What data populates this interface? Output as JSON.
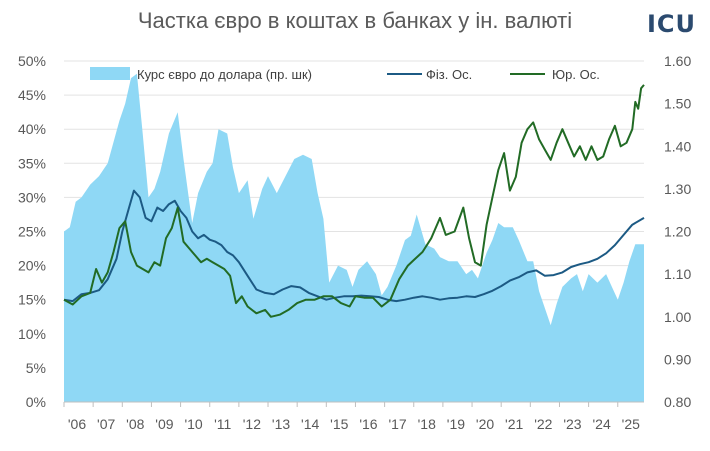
{
  "header": {
    "title": "Частка євро в коштах в банках у ін. валюті",
    "brand": "ICU"
  },
  "colors": {
    "area": "#8fd8f5",
    "individuals": "#1c5a84",
    "legal": "#226b25",
    "axis_text": "#595959"
  },
  "chart_data": {
    "type": "line",
    "title": "Частка євро в коштах в банках у ін. валюті",
    "x_ticks": [
      "'06",
      "'07",
      "'08",
      "'09",
      "'10",
      "'11",
      "'12",
      "'13",
      "'14",
      "'15",
      "'16",
      "'17",
      "'18",
      "'19",
      "'20",
      "'21",
      "'22",
      "'23",
      "'24",
      "'25"
    ],
    "x_range": [
      2006,
      2025.9
    ],
    "y_left": {
      "ticks": [
        "0%",
        "5%",
        "10%",
        "15%",
        "20%",
        "25%",
        "30%",
        "35%",
        "40%",
        "45%",
        "50%"
      ],
      "range": [
        0,
        50
      ]
    },
    "y_right": {
      "ticks": [
        "0.80",
        "0.90",
        "1.00",
        "1.10",
        "1.20",
        "1.30",
        "1.40",
        "1.50",
        "1.60"
      ],
      "range": [
        0.8,
        1.6
      ]
    },
    "grid": true,
    "legend": "top",
    "series": [
      {
        "name": "Курс євро до долара (пр. шк)",
        "type": "area",
        "axis": "right",
        "points": [
          [
            2006.0,
            1.2
          ],
          [
            2006.2,
            1.21
          ],
          [
            2006.4,
            1.27
          ],
          [
            2006.6,
            1.28
          ],
          [
            2006.9,
            1.31
          ],
          [
            2007.2,
            1.33
          ],
          [
            2007.5,
            1.36
          ],
          [
            2007.9,
            1.46
          ],
          [
            2008.1,
            1.5
          ],
          [
            2008.3,
            1.56
          ],
          [
            2008.5,
            1.57
          ],
          [
            2008.7,
            1.43
          ],
          [
            2008.9,
            1.28
          ],
          [
            2009.1,
            1.3
          ],
          [
            2009.3,
            1.34
          ],
          [
            2009.6,
            1.43
          ],
          [
            2009.9,
            1.48
          ],
          [
            2010.1,
            1.37
          ],
          [
            2010.4,
            1.22
          ],
          [
            2010.6,
            1.29
          ],
          [
            2010.9,
            1.34
          ],
          [
            2011.1,
            1.36
          ],
          [
            2011.3,
            1.44
          ],
          [
            2011.6,
            1.43
          ],
          [
            2011.8,
            1.35
          ],
          [
            2012.0,
            1.29
          ],
          [
            2012.3,
            1.32
          ],
          [
            2012.5,
            1.23
          ],
          [
            2012.8,
            1.3
          ],
          [
            2013.0,
            1.33
          ],
          [
            2013.3,
            1.29
          ],
          [
            2013.6,
            1.33
          ],
          [
            2013.9,
            1.37
          ],
          [
            2014.2,
            1.38
          ],
          [
            2014.5,
            1.37
          ],
          [
            2014.7,
            1.29
          ],
          [
            2014.9,
            1.23
          ],
          [
            2015.1,
            1.08
          ],
          [
            2015.4,
            1.12
          ],
          [
            2015.7,
            1.11
          ],
          [
            2015.9,
            1.07
          ],
          [
            2016.1,
            1.11
          ],
          [
            2016.4,
            1.13
          ],
          [
            2016.7,
            1.1
          ],
          [
            2016.9,
            1.05
          ],
          [
            2017.1,
            1.07
          ],
          [
            2017.4,
            1.12
          ],
          [
            2017.7,
            1.18
          ],
          [
            2017.9,
            1.19
          ],
          [
            2018.1,
            1.24
          ],
          [
            2018.4,
            1.17
          ],
          [
            2018.7,
            1.16
          ],
          [
            2018.9,
            1.14
          ],
          [
            2019.2,
            1.13
          ],
          [
            2019.5,
            1.13
          ],
          [
            2019.8,
            1.1
          ],
          [
            2020.0,
            1.11
          ],
          [
            2020.2,
            1.09
          ],
          [
            2020.5,
            1.15
          ],
          [
            2020.7,
            1.18
          ],
          [
            2020.9,
            1.22
          ],
          [
            2021.1,
            1.21
          ],
          [
            2021.4,
            1.21
          ],
          [
            2021.6,
            1.18
          ],
          [
            2021.9,
            1.13
          ],
          [
            2022.1,
            1.13
          ],
          [
            2022.3,
            1.06
          ],
          [
            2022.5,
            1.02
          ],
          [
            2022.7,
            0.98
          ],
          [
            2022.9,
            1.03
          ],
          [
            2023.1,
            1.07
          ],
          [
            2023.4,
            1.09
          ],
          [
            2023.6,
            1.1
          ],
          [
            2023.8,
            1.06
          ],
          [
            2024.0,
            1.1
          ],
          [
            2024.3,
            1.08
          ],
          [
            2024.6,
            1.1
          ],
          [
            2024.8,
            1.07
          ],
          [
            2025.0,
            1.04
          ],
          [
            2025.2,
            1.08
          ],
          [
            2025.4,
            1.13
          ],
          [
            2025.6,
            1.17
          ],
          [
            2025.9,
            1.17
          ]
        ]
      },
      {
        "name": "Фіз. Ос.",
        "type": "line",
        "axis": "left",
        "points": [
          [
            2006.0,
            15.0
          ],
          [
            2006.3,
            14.8
          ],
          [
            2006.6,
            15.8
          ],
          [
            2006.9,
            16.0
          ],
          [
            2007.2,
            16.4
          ],
          [
            2007.5,
            18.0
          ],
          [
            2007.8,
            21.0
          ],
          [
            2008.0,
            25.0
          ],
          [
            2008.2,
            28.0
          ],
          [
            2008.4,
            31.0
          ],
          [
            2008.6,
            30.0
          ],
          [
            2008.8,
            27.0
          ],
          [
            2009.0,
            26.5
          ],
          [
            2009.2,
            28.5
          ],
          [
            2009.4,
            28.0
          ],
          [
            2009.6,
            29.0
          ],
          [
            2009.8,
            29.5
          ],
          [
            2010.0,
            28.0
          ],
          [
            2010.2,
            27.0
          ],
          [
            2010.4,
            25.0
          ],
          [
            2010.6,
            24.0
          ],
          [
            2010.8,
            24.5
          ],
          [
            2011.0,
            23.8
          ],
          [
            2011.2,
            23.5
          ],
          [
            2011.4,
            23.0
          ],
          [
            2011.6,
            22.0
          ],
          [
            2011.8,
            21.5
          ],
          [
            2012.0,
            20.5
          ],
          [
            2012.3,
            18.5
          ],
          [
            2012.6,
            16.5
          ],
          [
            2012.9,
            16.0
          ],
          [
            2013.2,
            15.8
          ],
          [
            2013.5,
            16.5
          ],
          [
            2013.8,
            17.0
          ],
          [
            2014.1,
            16.8
          ],
          [
            2014.4,
            16.0
          ],
          [
            2014.7,
            15.5
          ],
          [
            2015.0,
            15.0
          ],
          [
            2015.3,
            15.3
          ],
          [
            2015.6,
            15.5
          ],
          [
            2015.9,
            15.5
          ],
          [
            2016.2,
            15.6
          ],
          [
            2016.5,
            15.5
          ],
          [
            2016.8,
            15.4
          ],
          [
            2017.1,
            15.0
          ],
          [
            2017.4,
            14.8
          ],
          [
            2017.7,
            15.0
          ],
          [
            2018.0,
            15.3
          ],
          [
            2018.3,
            15.5
          ],
          [
            2018.6,
            15.3
          ],
          [
            2018.9,
            15.0
          ],
          [
            2019.2,
            15.2
          ],
          [
            2019.5,
            15.3
          ],
          [
            2019.8,
            15.5
          ],
          [
            2020.1,
            15.4
          ],
          [
            2020.4,
            15.8
          ],
          [
            2020.7,
            16.3
          ],
          [
            2021.0,
            17.0
          ],
          [
            2021.3,
            17.8
          ],
          [
            2021.6,
            18.3
          ],
          [
            2021.9,
            19.0
          ],
          [
            2022.2,
            19.3
          ],
          [
            2022.5,
            18.5
          ],
          [
            2022.8,
            18.6
          ],
          [
            2023.1,
            19.0
          ],
          [
            2023.4,
            19.8
          ],
          [
            2023.7,
            20.2
          ],
          [
            2024.0,
            20.5
          ],
          [
            2024.3,
            21.0
          ],
          [
            2024.6,
            21.8
          ],
          [
            2024.9,
            23.0
          ],
          [
            2025.2,
            24.5
          ],
          [
            2025.5,
            26.0
          ],
          [
            2025.9,
            27.0
          ]
        ]
      },
      {
        "name": "Юр. Ос.",
        "type": "line",
        "axis": "left",
        "points": [
          [
            2006.0,
            15.0
          ],
          [
            2006.3,
            14.3
          ],
          [
            2006.6,
            15.5
          ],
          [
            2006.9,
            16.0
          ],
          [
            2007.1,
            19.5
          ],
          [
            2007.3,
            17.5
          ],
          [
            2007.5,
            19.0
          ],
          [
            2007.7,
            22.0
          ],
          [
            2007.9,
            25.5
          ],
          [
            2008.1,
            26.5
          ],
          [
            2008.3,
            22.0
          ],
          [
            2008.5,
            20.0
          ],
          [
            2008.7,
            19.5
          ],
          [
            2008.9,
            19.0
          ],
          [
            2009.1,
            20.5
          ],
          [
            2009.3,
            20.0
          ],
          [
            2009.5,
            24.0
          ],
          [
            2009.7,
            25.5
          ],
          [
            2009.9,
            28.5
          ],
          [
            2010.1,
            23.5
          ],
          [
            2010.3,
            22.5
          ],
          [
            2010.5,
            21.5
          ],
          [
            2010.7,
            20.5
          ],
          [
            2010.9,
            21.0
          ],
          [
            2011.1,
            20.5
          ],
          [
            2011.3,
            20.0
          ],
          [
            2011.5,
            19.5
          ],
          [
            2011.7,
            18.5
          ],
          [
            2011.9,
            14.5
          ],
          [
            2012.1,
            15.5
          ],
          [
            2012.3,
            14.0
          ],
          [
            2012.6,
            13.0
          ],
          [
            2012.9,
            13.5
          ],
          [
            2013.1,
            12.5
          ],
          [
            2013.4,
            12.8
          ],
          [
            2013.7,
            13.5
          ],
          [
            2014.0,
            14.5
          ],
          [
            2014.3,
            15.0
          ],
          [
            2014.6,
            15.0
          ],
          [
            2014.9,
            15.5
          ],
          [
            2015.2,
            15.5
          ],
          [
            2015.5,
            14.5
          ],
          [
            2015.8,
            14.0
          ],
          [
            2016.0,
            15.5
          ],
          [
            2016.3,
            15.3
          ],
          [
            2016.6,
            15.3
          ],
          [
            2016.9,
            14.0
          ],
          [
            2017.2,
            15.0
          ],
          [
            2017.5,
            18.0
          ],
          [
            2017.8,
            20.0
          ],
          [
            2018.0,
            20.8
          ],
          [
            2018.3,
            22.0
          ],
          [
            2018.6,
            24.0
          ],
          [
            2018.9,
            27.0
          ],
          [
            2019.1,
            24.5
          ],
          [
            2019.4,
            25.0
          ],
          [
            2019.7,
            28.5
          ],
          [
            2019.9,
            24.0
          ],
          [
            2020.1,
            20.5
          ],
          [
            2020.3,
            20.0
          ],
          [
            2020.5,
            26.0
          ],
          [
            2020.7,
            30.0
          ],
          [
            2020.9,
            34.0
          ],
          [
            2021.1,
            36.5
          ],
          [
            2021.3,
            31.0
          ],
          [
            2021.5,
            33.0
          ],
          [
            2021.7,
            38.0
          ],
          [
            2021.9,
            40.0
          ],
          [
            2022.1,
            41.0
          ],
          [
            2022.3,
            38.5
          ],
          [
            2022.5,
            37.0
          ],
          [
            2022.7,
            35.5
          ],
          [
            2022.9,
            38.0
          ],
          [
            2023.1,
            40.0
          ],
          [
            2023.3,
            38.0
          ],
          [
            2023.5,
            36.0
          ],
          [
            2023.7,
            37.5
          ],
          [
            2023.9,
            35.5
          ],
          [
            2024.1,
            37.5
          ],
          [
            2024.3,
            35.5
          ],
          [
            2024.5,
            36.0
          ],
          [
            2024.7,
            38.5
          ],
          [
            2024.9,
            40.5
          ],
          [
            2025.1,
            37.5
          ],
          [
            2025.3,
            38.0
          ],
          [
            2025.5,
            40.0
          ],
          [
            2025.6,
            44.0
          ],
          [
            2025.7,
            43.0
          ],
          [
            2025.8,
            46.0
          ],
          [
            2025.9,
            46.5
          ]
        ]
      }
    ]
  }
}
